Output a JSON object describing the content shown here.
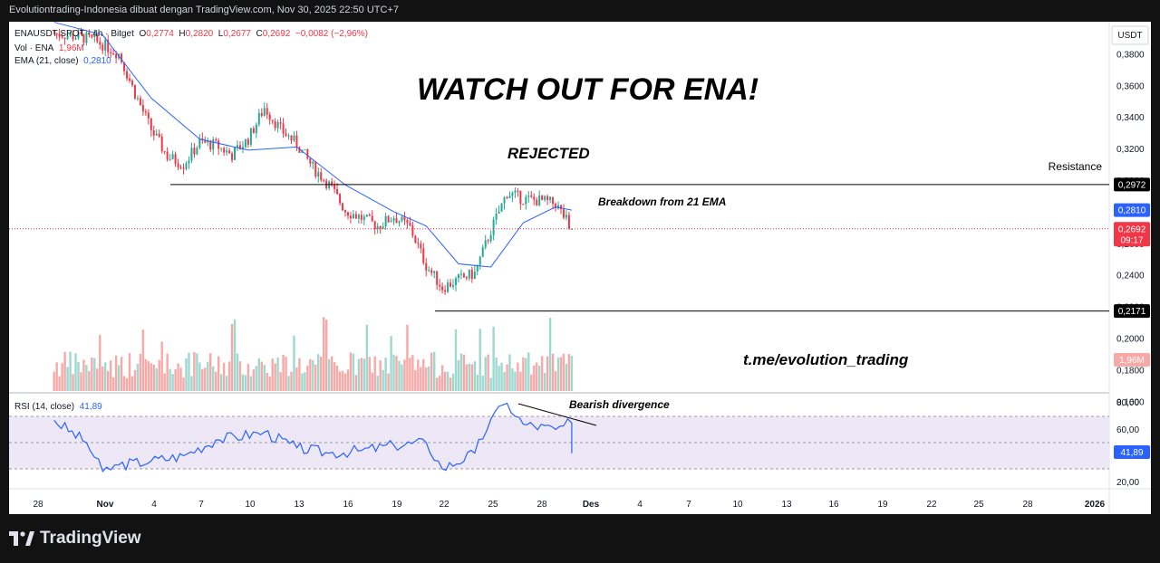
{
  "header": {
    "caption": "Evolutiontrading-Indonesia dibuat dengan TradingView.com, Nov 30, 2025 22:50 UTC+7"
  },
  "footer": {
    "brand": "TradingView"
  },
  "colors": {
    "up": "#22ab94",
    "down": "#f23645",
    "ema": "#2962ff",
    "rsi": "#2962ff",
    "rsi_band": "#ede7f6",
    "volume_up": "#9fd8cf",
    "volume_down": "#f7a9a7"
  },
  "legend": {
    "symbol": "ENAUSDT SPOT · 4h · Bitget",
    "o_label": "O",
    "o": "0,2774",
    "h_label": "H",
    "h": "0,2820",
    "l_label": "L",
    "l": "0,2677",
    "c_label": "C",
    "c": "0,2692",
    "change": "−0,0082 (−2,96%)",
    "vol_label": "Vol · ENA",
    "vol": "1,96M",
    "ema_label": "EMA (21, close)",
    "ema": "0,2810",
    "rsi_label": "RSI (14, close)",
    "rsi": "41,89"
  },
  "annotations": {
    "title": "WATCH OUT FOR ENA!",
    "rejected": "REJECTED",
    "resistance": "Resistance",
    "breakdown": "Breakdown from 21 EMA",
    "bearish_div": "Bearish divergence",
    "telegram": "t.me/evolution_trading"
  },
  "price_scale": {
    "currency": "USDT",
    "ticks": [
      "0,3800",
      "0,3600",
      "0,3400",
      "0,3200",
      "0,3000",
      "0,2800",
      "0,2600",
      "0,2400",
      "0,2200",
      "0,2000",
      "0,1800",
      "0,1600"
    ],
    "resistance_label": "0,2972",
    "ema_label": "0,2810",
    "last_price_label": "0,2692",
    "countdown": "09:17",
    "support_label": "0,2171",
    "volume_label": "1,96M"
  },
  "rsi_scale": {
    "ticks": [
      "80,00",
      "60,00",
      "20,00"
    ],
    "value_label": "41,89"
  },
  "time_axis": [
    "28",
    "Nov",
    "4",
    "7",
    "10",
    "13",
    "16",
    "19",
    "22",
    "25",
    "28",
    "Des",
    "4",
    "7",
    "10",
    "13",
    "16",
    "19",
    "22",
    "25",
    "28",
    "2026"
  ],
  "chart_data": {
    "type": "candlestick",
    "interval": "4h",
    "y_range": [
      0.155,
      0.39
    ],
    "resistance": 0.2972,
    "support": 0.2171,
    "last_close": 0.2692,
    "ema_last": 0.281,
    "rsi_last": 41.89,
    "rsi_bands": [
      70,
      50,
      30
    ],
    "price_path": [
      [
        "2025-10-29",
        0.393
      ],
      [
        "2025-10-31",
        0.39
      ],
      [
        "2025-11-01",
        0.386
      ],
      [
        "2025-11-02",
        0.38
      ],
      [
        "2025-11-03",
        0.355
      ],
      [
        "2025-11-04",
        0.332
      ],
      [
        "2025-11-05",
        0.315
      ],
      [
        "2025-11-06",
        0.31
      ],
      [
        "2025-11-07",
        0.324
      ],
      [
        "2025-11-08",
        0.322
      ],
      [
        "2025-11-09",
        0.316
      ],
      [
        "2025-11-10",
        0.326
      ],
      [
        "2025-11-11",
        0.346
      ],
      [
        "2025-11-12",
        0.332
      ],
      [
        "2025-11-13",
        0.323
      ],
      [
        "2025-11-14",
        0.308
      ],
      [
        "2025-11-15",
        0.297
      ],
      [
        "2025-11-16",
        0.281
      ],
      [
        "2025-11-17",
        0.276
      ],
      [
        "2025-11-18",
        0.271
      ],
      [
        "2025-11-19",
        0.277
      ],
      [
        "2025-11-20",
        0.27
      ],
      [
        "2025-11-21",
        0.246
      ],
      [
        "2025-11-22",
        0.232
      ],
      [
        "2025-11-23",
        0.237
      ],
      [
        "2025-11-24",
        0.241
      ],
      [
        "2025-11-25",
        0.268
      ],
      [
        "2025-11-26",
        0.292
      ],
      [
        "2025-11-27",
        0.288
      ],
      [
        "2025-11-28",
        0.287
      ],
      [
        "2025-11-29",
        0.285
      ],
      [
        "2025-11-30",
        0.2692
      ]
    ],
    "ema_path": [
      [
        "2025-10-29",
        0.4
      ],
      [
        "2025-11-01",
        0.392
      ],
      [
        "2025-11-04",
        0.352
      ],
      [
        "2025-11-07",
        0.326
      ],
      [
        "2025-11-10",
        0.319
      ],
      [
        "2025-11-13",
        0.321
      ],
      [
        "2025-11-16",
        0.297
      ],
      [
        "2025-11-19",
        0.28
      ],
      [
        "2025-11-21",
        0.271
      ],
      [
        "2025-11-23",
        0.247
      ],
      [
        "2025-11-25",
        0.245
      ],
      [
        "2025-11-27",
        0.273
      ],
      [
        "2025-11-29",
        0.283
      ],
      [
        "2025-11-30",
        0.281
      ]
    ],
    "rsi_path": [
      [
        "2025-10-29",
        67
      ],
      [
        "2025-10-31",
        50
      ],
      [
        "2025-11-01",
        28
      ],
      [
        "2025-11-02",
        33
      ],
      [
        "2025-11-04",
        36
      ],
      [
        "2025-11-06",
        40
      ],
      [
        "2025-11-08",
        52
      ],
      [
        "2025-11-11",
        58
      ],
      [
        "2025-11-13",
        46
      ],
      [
        "2025-11-15",
        42
      ],
      [
        "2025-11-17",
        44
      ],
      [
        "2025-11-19",
        48
      ],
      [
        "2025-11-21",
        50
      ],
      [
        "2025-11-22",
        30
      ],
      [
        "2025-11-24",
        42
      ],
      [
        "2025-11-25",
        68
      ],
      [
        "2025-11-26",
        80
      ],
      [
        "2025-11-27",
        64
      ],
      [
        "2025-11-29",
        60
      ],
      [
        "2025-11-30",
        65
      ],
      [
        "2025-11-30",
        41.89
      ]
    ]
  }
}
